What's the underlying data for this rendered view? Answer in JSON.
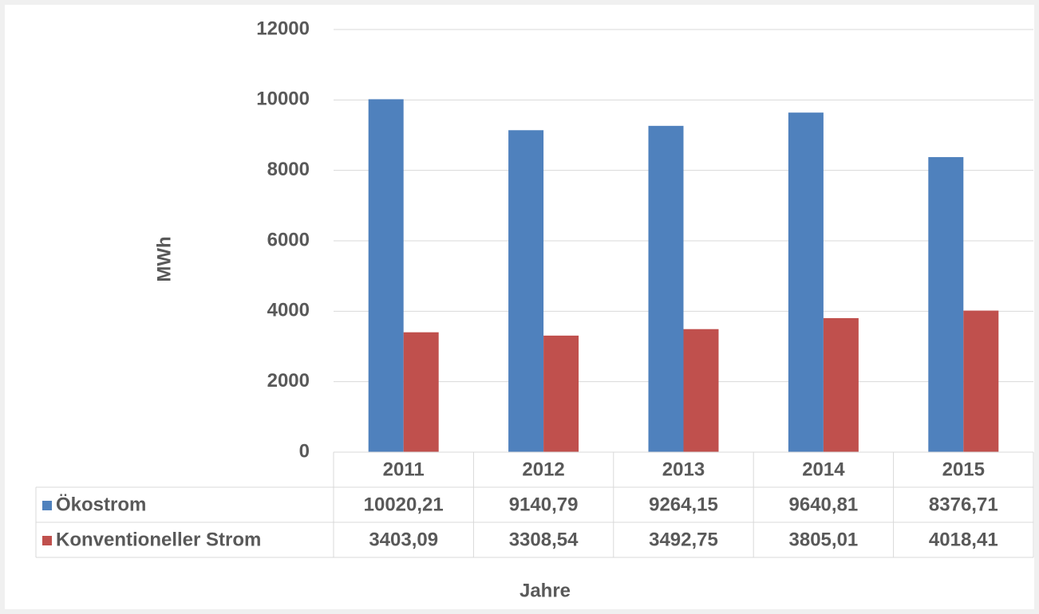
{
  "chart_data": {
    "type": "bar",
    "y_label": "MWh",
    "x_label": "Jahre",
    "categories": [
      "2011",
      "2012",
      "2013",
      "2014",
      "2015"
    ],
    "series": [
      {
        "name": "Ökostrom",
        "color": "#4f81bd",
        "values": [
          10020.21,
          9140.79,
          9264.15,
          9640.81,
          8376.71
        ],
        "value_labels": [
          "10020,21",
          "9140,79",
          "9264,15",
          "9640,81",
          "8376,71"
        ]
      },
      {
        "name": "Konventioneller Strom",
        "color": "#c0504d",
        "values": [
          3403.09,
          3308.54,
          3492.75,
          3805.01,
          4018.41
        ],
        "value_labels": [
          "3403,09",
          "3308,54",
          "3492,75",
          "3805,01",
          "4018,41"
        ]
      }
    ],
    "ylim": [
      0,
      12000
    ],
    "yticks": [
      0,
      2000,
      4000,
      6000,
      8000,
      10000,
      12000
    ],
    "grid": true
  }
}
